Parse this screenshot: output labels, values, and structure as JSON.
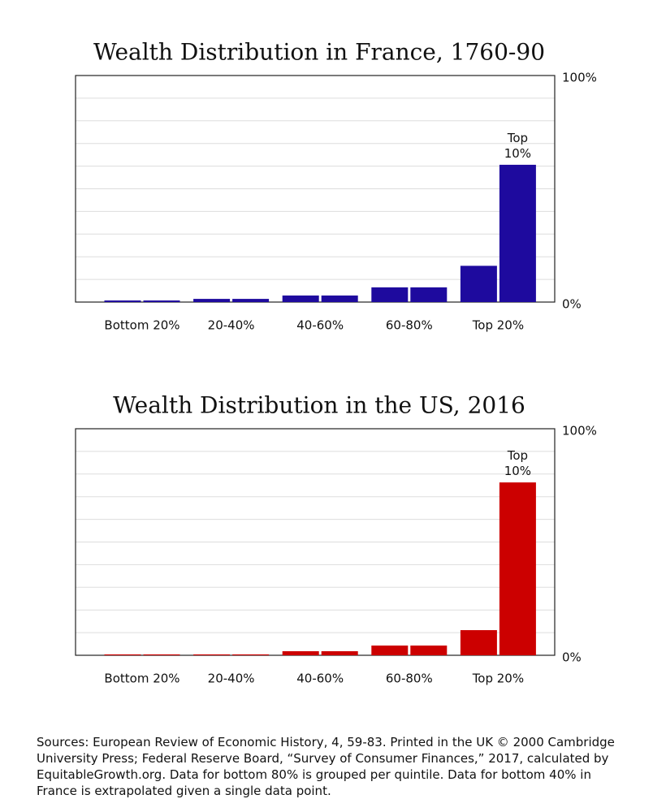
{
  "chart_data": [
    {
      "type": "bar",
      "title": "Wealth Distribution in France, 1760-90",
      "categories": [
        "Bottom 20%",
        "20-40%",
        "40-60%",
        "60-80%",
        "Top 20%"
      ],
      "values": [
        [
          0.7,
          0.7
        ],
        [
          1.4,
          1.4
        ],
        [
          2.9,
          2.9
        ],
        [
          6.5,
          6.5
        ],
        [
          16,
          60.6
        ]
      ],
      "color": "#1e0a9e",
      "ylim": [
        0,
        100
      ],
      "yticks": [
        {
          "value": 0,
          "label": "0%"
        },
        {
          "value": 100,
          "label": "100%"
        }
      ],
      "grid_lines": [
        10,
        20,
        30,
        40,
        50,
        60,
        70,
        80,
        90
      ],
      "annotation": "Top 10%"
    },
    {
      "type": "bar",
      "title": "Wealth Distribution in the US, 2016",
      "categories": [
        "Bottom 20%",
        "20-40%",
        "40-60%",
        "60-80%",
        "Top 20%"
      ],
      "values": [
        [
          0.4,
          0.4
        ],
        [
          0.4,
          0.4
        ],
        [
          1.8,
          1.8
        ],
        [
          4.3,
          4.3
        ],
        [
          11.1,
          76.3
        ]
      ],
      "color": "#cc0000",
      "ylim": [
        0,
        100
      ],
      "yticks": [
        {
          "value": 0,
          "label": "0%"
        },
        {
          "value": 100,
          "label": "100%"
        }
      ],
      "grid_lines": [
        10,
        20,
        30,
        40,
        50,
        60,
        70,
        80,
        90
      ],
      "annotation": "Top 10%"
    }
  ],
  "source": "Sources: European Review of Economic History, 4, 59-83. Printed in the UK © 2000 Cambridge University Press; Federal Reserve Board, “Survey of Consumer Finances,” 2017, calculated by EquitableGrowth.org. Data for bottom 80% is grouped per quintile. Data for bottom 40% in France is extrapolated given a single data point."
}
